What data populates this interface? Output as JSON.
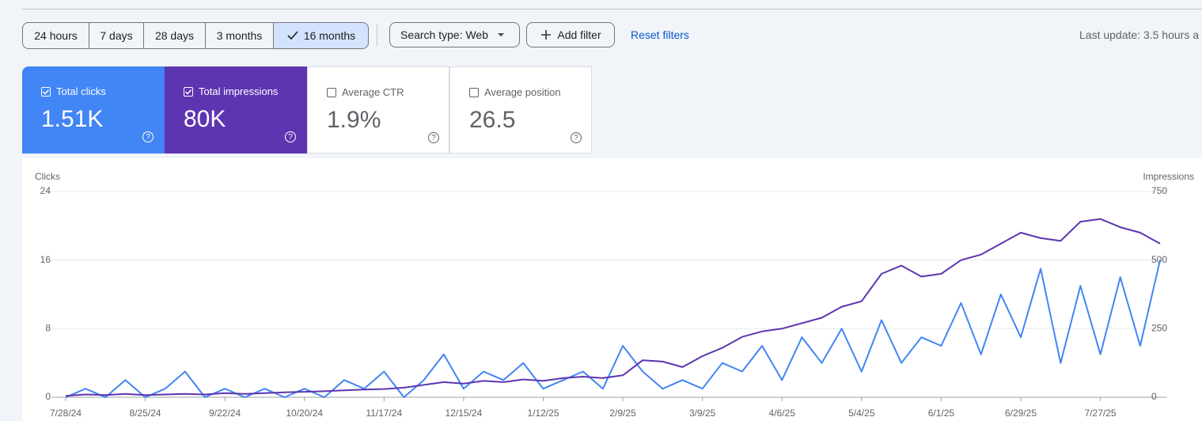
{
  "filters": {
    "date_ranges": [
      "24 hours",
      "7 days",
      "28 days",
      "3 months",
      "16 months"
    ],
    "selected": 4,
    "search_type": "Search type: Web",
    "add_filter": "Add filter",
    "reset": "Reset filters",
    "last_update": "Last update: 3.5 hours a"
  },
  "metrics": [
    {
      "label": "Total clicks",
      "value": "1.51K",
      "checked": true,
      "color": "#4285f4"
    },
    {
      "label": "Total impressions",
      "value": "80K",
      "checked": true,
      "color": "#5e35b1"
    },
    {
      "label": "Average CTR",
      "value": "1.9%",
      "checked": false
    },
    {
      "label": "Average position",
      "value": "26.5",
      "checked": false
    }
  ],
  "chart_data": {
    "type": "line",
    "y_label": "Clicks",
    "y2_label": "Impressions",
    "x": [
      "7/28/24",
      "8/4/24",
      "8/11/24",
      "8/18/24",
      "8/25/24",
      "9/1/24",
      "9/8/24",
      "9/15/24",
      "9/22/24",
      "9/29/24",
      "10/6/24",
      "10/13/24",
      "10/20/24",
      "10/27/24",
      "11/3/24",
      "11/10/24",
      "11/17/24",
      "11/24/24",
      "12/1/24",
      "12/8/24",
      "12/15/24",
      "12/22/24",
      "12/29/24",
      "1/5/25",
      "1/12/25",
      "1/19/25",
      "1/26/25",
      "2/2/25",
      "2/9/25",
      "2/16/25",
      "2/23/25",
      "3/2/25",
      "3/9/25",
      "3/16/25",
      "3/23/25",
      "3/30/25",
      "4/6/25",
      "4/13/25",
      "4/20/25",
      "4/27/25",
      "5/4/25",
      "5/11/25",
      "5/18/25",
      "5/25/25",
      "6/1/25",
      "6/8/25",
      "6/15/25",
      "6/22/25",
      "6/29/25",
      "7/6/25",
      "7/13/25",
      "7/20/25",
      "7/27/25",
      "8/3/25",
      "8/10/25",
      "8/17/25"
    ],
    "xlim": [
      "7/28/24",
      "8/17/25"
    ],
    "xticks": [
      "7/28/24",
      "8/25/24",
      "9/22/24",
      "10/20/24",
      "11/17/24",
      "12/15/24",
      "1/12/25",
      "2/9/25",
      "3/9/25",
      "4/6/25",
      "5/4/25",
      "6/1/25",
      "6/29/25",
      "7/27/25"
    ],
    "ylim": [
      0,
      24
    ],
    "yticks": [
      0,
      8,
      16,
      24
    ],
    "y2lim": [
      0,
      750
    ],
    "y2ticks": [
      0,
      250,
      500,
      750
    ],
    "grid": true,
    "series": [
      {
        "color": "#4285f4",
        "values": [
          0,
          1,
          0,
          2,
          0,
          1,
          3,
          0,
          1,
          0,
          1,
          0,
          1,
          0,
          2,
          1,
          3,
          0,
          2,
          5,
          1,
          3,
          2,
          4,
          1,
          2,
          3,
          1,
          6,
          3,
          1,
          2,
          1,
          4,
          3,
          6,
          2,
          7,
          4,
          8,
          3,
          9,
          4,
          7,
          6,
          11,
          5,
          12,
          7,
          15,
          4,
          13,
          5,
          14,
          6,
          16
        ]
      },
      {
        "color": "#5e35b1",
        "axis": "y2",
        "values": [
          5,
          10,
          8,
          12,
          8,
          10,
          12,
          10,
          15,
          12,
          15,
          18,
          20,
          22,
          25,
          28,
          30,
          35,
          45,
          55,
          50,
          60,
          55,
          65,
          60,
          70,
          75,
          70,
          80,
          135,
          130,
          110,
          150,
          180,
          220,
          240,
          250,
          270,
          290,
          330,
          350,
          450,
          480,
          440,
          450,
          500,
          520,
          560,
          600,
          580,
          570,
          640,
          650,
          620,
          600,
          560
        ]
      }
    ]
  }
}
